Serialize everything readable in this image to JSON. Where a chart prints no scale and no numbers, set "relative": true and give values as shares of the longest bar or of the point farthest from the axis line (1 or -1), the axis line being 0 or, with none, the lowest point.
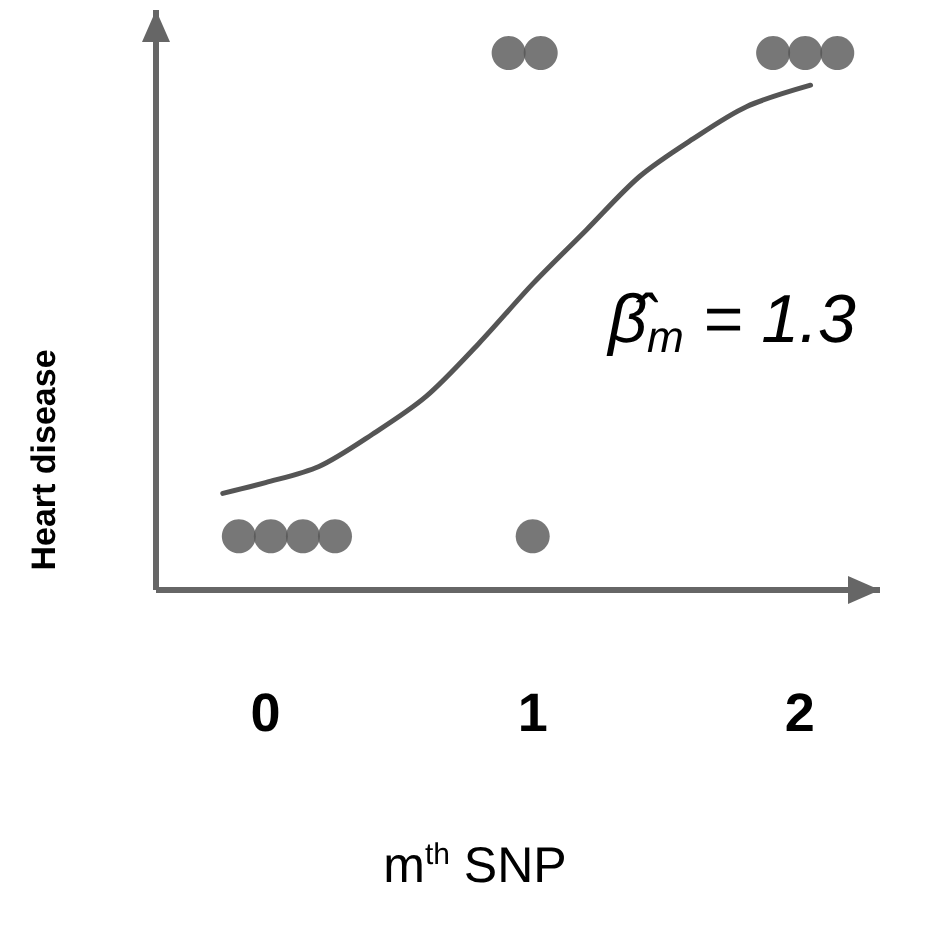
{
  "chart_data": {
    "type": "scatter",
    "relative": true,
    "xlabel": "m$^{th}$ SNP",
    "ylabel": "Heart disease",
    "xlim": [
      -0.41,
      2.3
    ],
    "xticks": [
      0,
      1,
      2
    ],
    "tick_labels": "x",
    "marker": "circle",
    "annotations": [
      "β̂$_{m}$ = 1.3"
    ],
    "series": [
      {
        "color": "#555555",
        "x": [
          -0.1,
          0.02,
          0.14,
          0.26,
          1.0,
          0.91,
          1.03,
          1.9,
          2.02,
          2.14
        ],
        "values": [
          0.1,
          0.1,
          0.1,
          0.1,
          0.1,
          1,
          1,
          1,
          1,
          1
        ]
      },
      {
        "type": "line",
        "color": "#555555",
        "marker": "none",
        "line_style": "solid",
        "x": [
          -0.16,
          0,
          0.2,
          0.4,
          0.6,
          0.8,
          1.0,
          1.2,
          1.4,
          1.6,
          1.8,
          2.04
        ],
        "values": [
          0.18,
          0.2,
          0.23,
          0.29,
          0.36,
          0.46,
          0.57,
          0.67,
          0.77,
          0.84,
          0.9,
          0.94
        ]
      }
    ]
  }
}
